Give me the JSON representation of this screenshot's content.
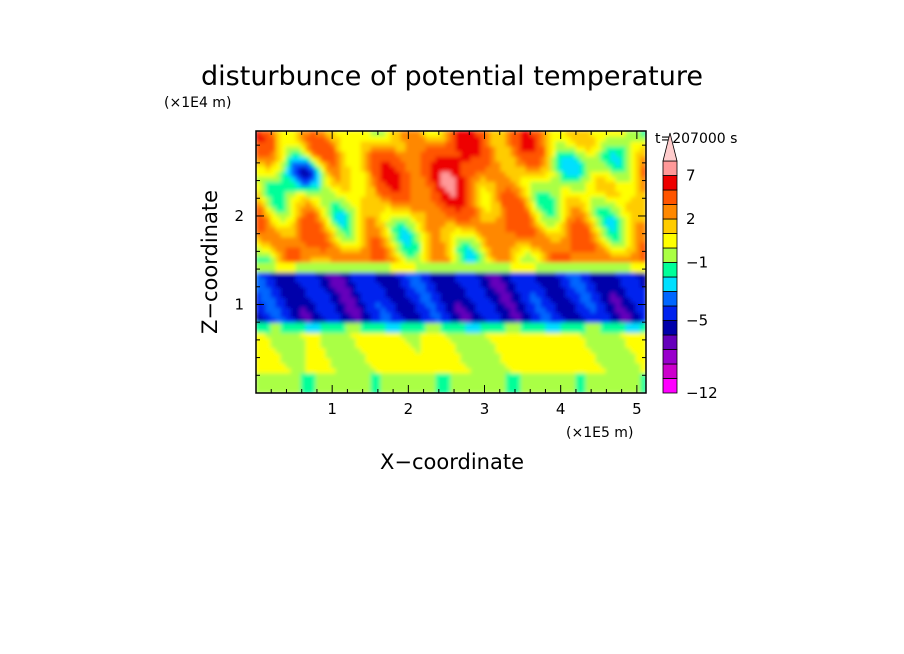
{
  "chart_data": {
    "type": "heatmap",
    "title": "disturbunce of potential temperature",
    "xlabel": "X−coordinate",
    "ylabel": "Z−coordinate",
    "x_unit": "(×1E5 m)",
    "y_unit": "(×1E4 m)",
    "time_label": "t=207000 s",
    "xlim": [
      0,
      5.12
    ],
    "ylim": [
      0,
      2.96
    ],
    "x_ticks": [
      "1",
      "2",
      "3",
      "4",
      "5"
    ],
    "y_ticks": [
      "1",
      "2"
    ],
    "colorbar": {
      "tick_labels": [
        "7",
        "2",
        "−1",
        "−5",
        "−12"
      ],
      "levels": [
        -12,
        -10,
        -8,
        -6,
        -5,
        -4,
        -3,
        -2,
        -1,
        0,
        1,
        2,
        3,
        5,
        7,
        9
      ],
      "colors": [
        "#ff00ff",
        "#cc00cc",
        "#9900cc",
        "#6600bb",
        "#0000aa",
        "#0022ee",
        "#0066ff",
        "#00e0ff",
        "#00ff99",
        "#aaff44",
        "#ffff00",
        "#ffcc00",
        "#ff8800",
        "#ff5500",
        "#ee0000",
        "#ff9999",
        "#ffcccc"
      ],
      "extend": "max"
    },
    "structure": [
      {
        "z_range": [
          0,
          0.2
        ],
        "description_value": -1
      },
      {
        "z_range": [
          0.7,
          1.35
        ],
        "description_value": -5
      },
      {
        "z_range": [
          1.6,
          2.96
        ],
        "description_value": 2
      }
    ]
  }
}
